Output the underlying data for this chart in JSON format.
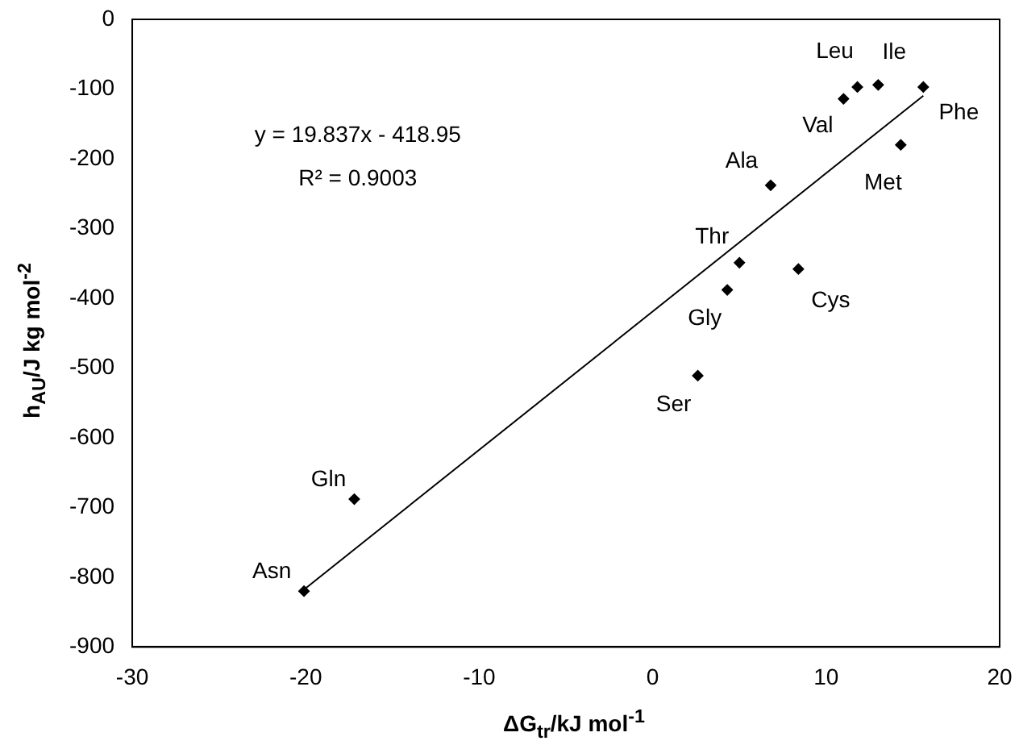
{
  "chart_data": {
    "type": "scatter",
    "xlabel": "ΔG$_{tr}$/kJ mol$^{-1}$",
    "ylabel": "h$_{AU}$/J kg mol$^{-2}$",
    "xlim": [
      -30,
      20
    ],
    "xticks": [
      -30,
      -20,
      -10,
      0,
      10,
      20
    ],
    "ylim": [
      -900,
      0
    ],
    "yticks": [
      -900,
      -800,
      -700,
      -600,
      -500,
      -400,
      -300,
      -200,
      -100,
      0
    ],
    "grid": false,
    "legend": false,
    "marker": "diamond",
    "series": [
      {
        "color": "#000000",
        "x": [
          -20.1,
          -17.2,
          2.6,
          4.3,
          5.0,
          8.4,
          6.8,
          11.0,
          11.8,
          13.0,
          14.3,
          15.6
        ],
        "values": [
          -820,
          -688,
          -511,
          -388,
          -349,
          -358,
          -238,
          -114,
          -97,
          -94,
          -180,
          -97
        ]
      },
      {
        "type": "line",
        "color": "#000000",
        "marker": "none",
        "x": [
          -20.1,
          15.6
        ],
        "values": [
          -817.7,
          -109.5
        ]
      }
    ],
    "annotations": [
      "y = 19.837x - 418.95",
      "R² = 0.9003",
      {
        "text": "Asn",
        "x": -20.1,
        "y": -820
      },
      {
        "text": "Gln",
        "x": -17.2,
        "y": -688
      },
      {
        "text": "Ser",
        "x": 2.6,
        "y": -511
      },
      {
        "text": "Gly",
        "x": 4.3,
        "y": -388
      },
      {
        "text": "Thr",
        "x": 5.0,
        "y": -349
      },
      {
        "text": "Cys",
        "x": 8.4,
        "y": -358
      },
      {
        "text": "Ala",
        "x": 6.8,
        "y": -238
      },
      {
        "text": "Val",
        "x": 11.0,
        "y": -114
      },
      {
        "text": "Leu",
        "x": 11.8,
        "y": -97
      },
      {
        "text": "Ile",
        "x": 13.0,
        "y": -94
      },
      {
        "text": "Met",
        "x": 14.3,
        "y": -180
      },
      {
        "text": "Phe",
        "x": 15.6,
        "y": -97
      }
    ]
  }
}
